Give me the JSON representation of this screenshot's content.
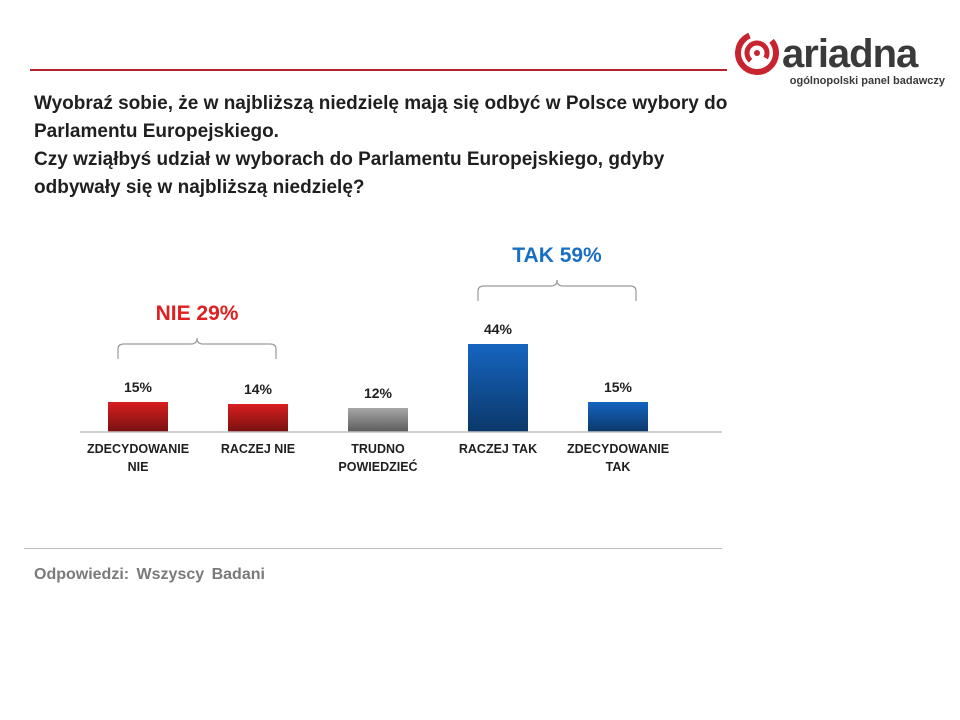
{
  "logo": {
    "wordmark": "ariadna",
    "tagline": "ogólnopolski panel badawczy",
    "brand_color": "#c8242f",
    "icon": "ariadna-spiral-icon"
  },
  "question": {
    "line1": "Wyobraź sobie, że w najbliższą niedzielę mają się odbyć w Polsce wybory do Parlamentu Europejskiego.",
    "line2": "Czy wziąłbyś udział w wyborach do Parlamentu Europejskiego, gdyby odbywały się w najbliższą niedzielę?"
  },
  "chart_data": {
    "type": "bar",
    "categories": [
      "ZDECYDOWANIE NIE",
      "RACZEJ NIE",
      "TRUDNO POWIEDZIEĆ",
      "RACZEJ TAK",
      "ZDECYDOWANIE TAK"
    ],
    "values": [
      15,
      14,
      12,
      44,
      15
    ],
    "value_labels": [
      "15%",
      "14%",
      "12%",
      "44%",
      "15%"
    ],
    "bar_colors": [
      "#d91e1e",
      "#d91e1e",
      "#a6a6a6",
      "#1565c0",
      "#1565c0"
    ],
    "groups": [
      {
        "label": "NIE 29%",
        "color": "#e02020",
        "from": 0,
        "to": 1
      },
      {
        "label": "TAK 59%",
        "color": "#1a6fc2",
        "from": 3,
        "to": 4
      }
    ],
    "grid": false
  },
  "footnote": "Odpowiedzi: Wszyscy Badani"
}
